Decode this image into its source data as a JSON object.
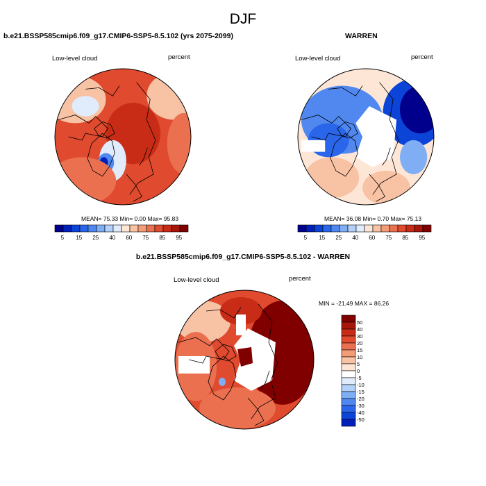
{
  "title": "DJF",
  "panels": [
    {
      "id": "model",
      "title": "b.e21.BSSP585cmip6.f09_g17.CMIP6-SSP5-8.5.102 (yrs 2075-2099)",
      "variable": "Low-level cloud",
      "units": "percent",
      "stats": "MEAN=  75.33  Min=    0.00  Max=   95.83"
    },
    {
      "id": "obs",
      "title": "WARREN",
      "variable": "Low-level cloud",
      "units": "percent",
      "stats": "MEAN=  36.08  Min=    0.70  Max=   75.13"
    },
    {
      "id": "diff",
      "title": "b.e21.BSSP585cmip6.f09_g17.CMIP6-SSP5-8.5.102 - WARREN",
      "variable": "Low-level cloud",
      "units": "percent",
      "stats": "MIN = -21.49 MAX =  86.26"
    }
  ],
  "chart_data": [
    {
      "type": "heatmap",
      "title": "b.e21.BSSP585cmip6.f09_g17.CMIP6-SSP5-8.5.102 (yrs 2075-2099)",
      "field": "Low-level cloud",
      "units": "percent",
      "projection": "north polar stereographic",
      "mean": 75.33,
      "min": 0.0,
      "max": 95.83,
      "colorbar_levels": [
        5,
        10,
        15,
        20,
        25,
        30,
        40,
        50,
        60,
        65,
        70,
        75,
        80,
        85,
        90,
        95
      ],
      "colorbar_labels": [
        "5",
        "15",
        "25",
        "40",
        "60",
        "75",
        "85",
        "95"
      ],
      "colorbar_colors": [
        "#00008c",
        "#0020b8",
        "#0c44d8",
        "#2a66ea",
        "#5088f0",
        "#80aef4",
        "#b2d0f8",
        "#e0ecfb",
        "#fde6d6",
        "#f8c2a4",
        "#f29c78",
        "#ea7050",
        "#e04a2e",
        "#c82c16",
        "#a6160a",
        "#800000"
      ]
    },
    {
      "type": "heatmap",
      "title": "WARREN",
      "field": "Low-level cloud",
      "units": "percent",
      "projection": "north polar stereographic",
      "mean": 36.08,
      "min": 0.7,
      "max": 75.13,
      "colorbar_levels": [
        5,
        10,
        15,
        20,
        25,
        30,
        40,
        50,
        60,
        65,
        70,
        75,
        80,
        85,
        90,
        95
      ],
      "colorbar_labels": [
        "5",
        "15",
        "25",
        "40",
        "60",
        "75",
        "85",
        "95"
      ],
      "colorbar_colors": [
        "#00008c",
        "#0020b8",
        "#0c44d8",
        "#2a66ea",
        "#5088f0",
        "#80aef4",
        "#b2d0f8",
        "#e0ecfb",
        "#fde6d6",
        "#f8c2a4",
        "#f29c78",
        "#ea7050",
        "#e04a2e",
        "#c82c16",
        "#a6160a",
        "#800000"
      ]
    },
    {
      "type": "heatmap",
      "title": "b.e21.BSSP585cmip6.f09_g17.CMIP6-SSP5-8.5.102 - WARREN",
      "field": "Low-level cloud",
      "units": "percent",
      "projection": "north polar stereographic",
      "min": -21.49,
      "max": 86.26,
      "colorbar_labels": [
        "50",
        "40",
        "30",
        "20",
        "15",
        "10",
        "5",
        "0",
        "-5",
        "-10",
        "-15",
        "-20",
        "-30",
        "-40",
        "-50"
      ],
      "colorbar_colors": [
        "#800000",
        "#a6160a",
        "#c82c16",
        "#e04a2e",
        "#ea7050",
        "#f29c78",
        "#f8c2a4",
        "#fde6d6",
        "#ffffff",
        "#e0ecfb",
        "#b2d0f8",
        "#80aef4",
        "#5088f0",
        "#2a66ea",
        "#0c44d8",
        "#0020b8"
      ]
    }
  ]
}
